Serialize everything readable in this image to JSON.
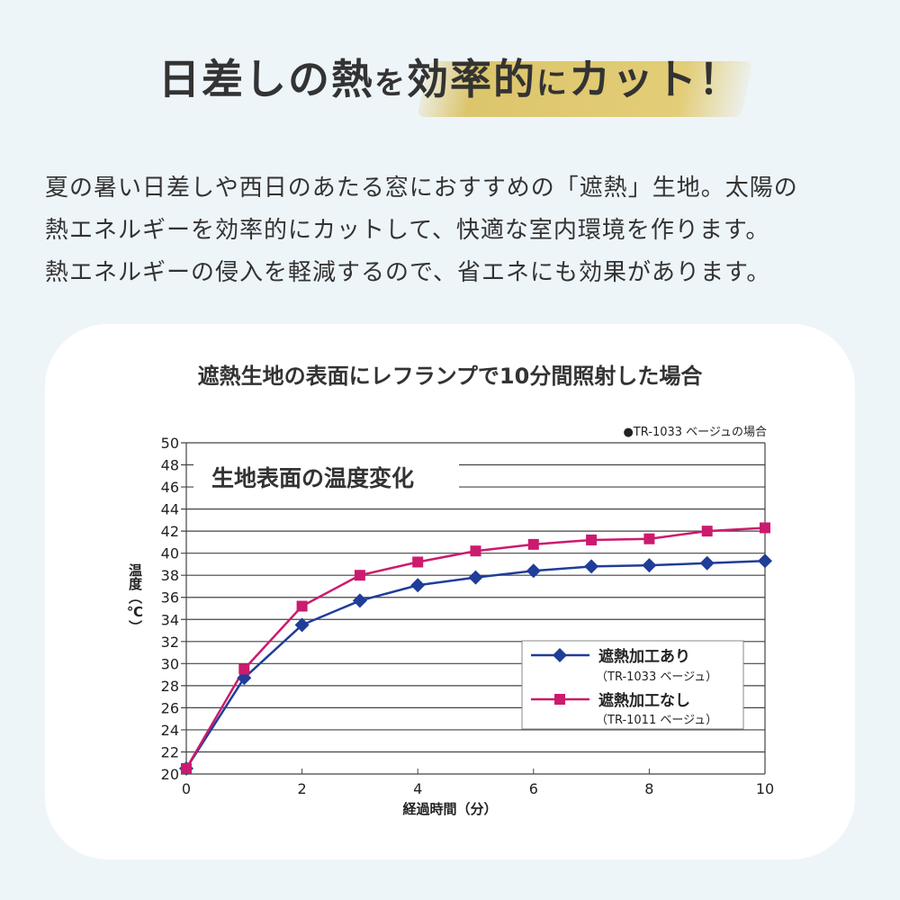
{
  "header": {
    "title_part1": "日差しの熱",
    "title_part2": "を",
    "title_part3": "効率的",
    "title_part4": "に",
    "title_part5": "カット！"
  },
  "description": {
    "lines": [
      "夏の暑い日差しや西日のあたる窓におすすめの「遮熱」生地。太陽の",
      "熱エネルギーを効率的にカットして、快適な室内環境を作ります。",
      "熱エネルギーの侵入を軽減するので、省エネにも効果があります。"
    ]
  },
  "colors": {
    "background": "#eef5f9",
    "brush": "#dcc56b",
    "series_blue": "#1f3d99",
    "series_pink": "#cc1a6e"
  },
  "chart_data": {
    "type": "line",
    "heading": "遮熱生地の表面にレフランプで10分間照射した場合",
    "title": "生地表面の温度変化",
    "note": "●TR-1033 ベージュの場合",
    "xlabel": "経過時間（分）",
    "ylabel": "温度（℃）",
    "xlim": [
      0,
      10
    ],
    "ylim": [
      20,
      50
    ],
    "xticks": [
      0,
      2,
      4,
      6,
      8,
      10
    ],
    "yticks": [
      20,
      22,
      24,
      26,
      28,
      30,
      32,
      34,
      36,
      38,
      40,
      42,
      44,
      46,
      48,
      50
    ],
    "grid": true,
    "legend_placement": "bottom-right",
    "x": [
      0,
      1,
      2,
      3,
      4,
      5,
      6,
      7,
      8,
      9,
      10
    ],
    "series": [
      {
        "name": "遮熱加工あり",
        "sub": "（TR-1033 ベージュ）",
        "marker": "diamond",
        "color": "#1f3d99",
        "values": [
          20.5,
          28.7,
          33.5,
          35.7,
          37.1,
          37.8,
          38.4,
          38.8,
          38.9,
          39.1,
          39.3
        ]
      },
      {
        "name": "遮熱加工なし",
        "sub": "（TR-1011 ベージュ）",
        "marker": "square",
        "color": "#cc1a6e",
        "values": [
          20.5,
          29.5,
          35.2,
          38.0,
          39.2,
          40.2,
          40.8,
          41.2,
          41.3,
          42.0,
          42.3
        ]
      }
    ]
  }
}
